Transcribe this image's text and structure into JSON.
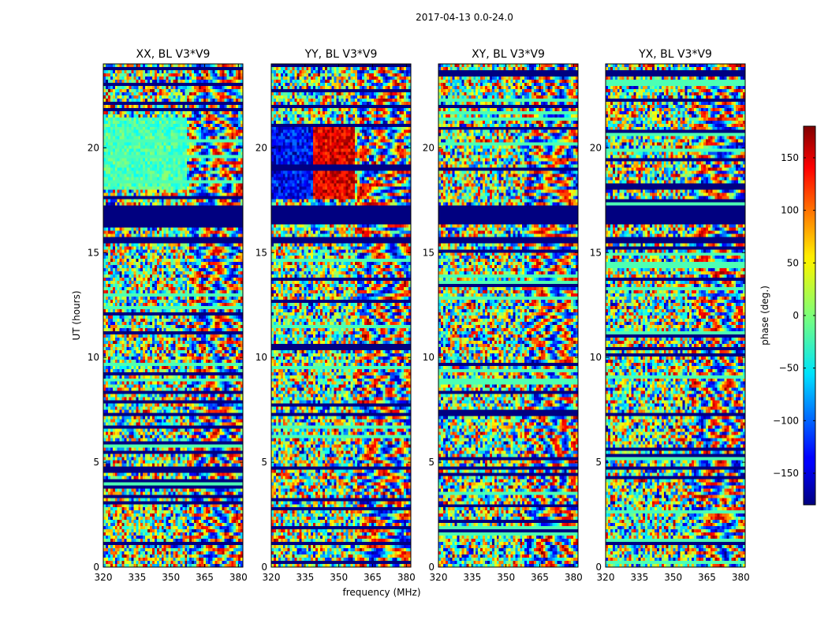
{
  "figure": {
    "suptitle": "2017-04-13 0.0-24.0"
  },
  "chart_data": {
    "type": "heatmap",
    "panels": [
      {
        "title": "XX, BL V3*V9"
      },
      {
        "title": "YY, BL V3*V9"
      },
      {
        "title": "XY, BL V3*V9"
      },
      {
        "title": "YX, BL V3*V9"
      }
    ],
    "xlabel": "frequency (MHz)",
    "ylabel": "UT (hours)",
    "xlim": [
      320,
      382
    ],
    "ylim": [
      0,
      24
    ],
    "xticks": [
      320,
      335,
      350,
      365,
      380
    ],
    "yticks": [
      0,
      5,
      10,
      15,
      20
    ],
    "colorbar": {
      "label": "phase (deg.)",
      "range": [
        -180,
        180
      ],
      "ticks": [
        -150,
        -100,
        -50,
        0,
        50,
        100,
        150
      ],
      "colormap": "jet"
    },
    "flagged_ut_bands": [
      [
        16.3,
        17.3
      ],
      [
        15.4,
        15.7
      ],
      [
        7.2,
        7.4
      ],
      [
        4.7,
        4.8
      ]
    ]
  }
}
